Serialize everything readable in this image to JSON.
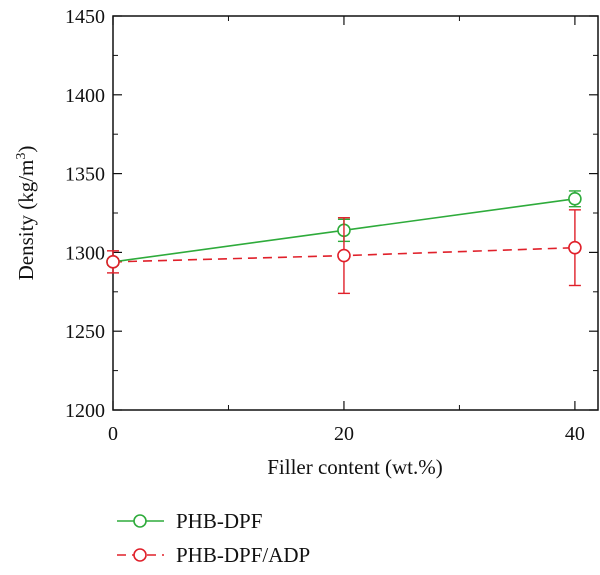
{
  "chart_data": {
    "type": "line",
    "title": "",
    "xlabel": "Filler content (wt.%)",
    "ylabel": "Density (kg/m",
    "ylabel_superscript": "3",
    "ylabel_suffix": ")",
    "xlim": [
      0,
      42
    ],
    "ylim": [
      1200,
      1450
    ],
    "xticks": [
      0,
      20,
      40
    ],
    "yticks": [
      1200,
      1250,
      1300,
      1350,
      1400,
      1450
    ],
    "grid": false,
    "legend_position": "bottom-left",
    "series": [
      {
        "name": "PHB-DPF",
        "color": "#2eab3b",
        "line_style": "solid",
        "marker": "open-circle",
        "x": [
          0,
          20,
          40
        ],
        "y": [
          1294,
          1314,
          1334
        ],
        "error": [
          2,
          7,
          5
        ]
      },
      {
        "name": "PHB-DPF/ADP",
        "color": "#e0202a",
        "line_style": "dashed",
        "marker": "open-circle",
        "x": [
          0,
          20,
          40
        ],
        "y": [
          1294,
          1298,
          1303
        ],
        "error": [
          7,
          24,
          24
        ]
      }
    ]
  }
}
